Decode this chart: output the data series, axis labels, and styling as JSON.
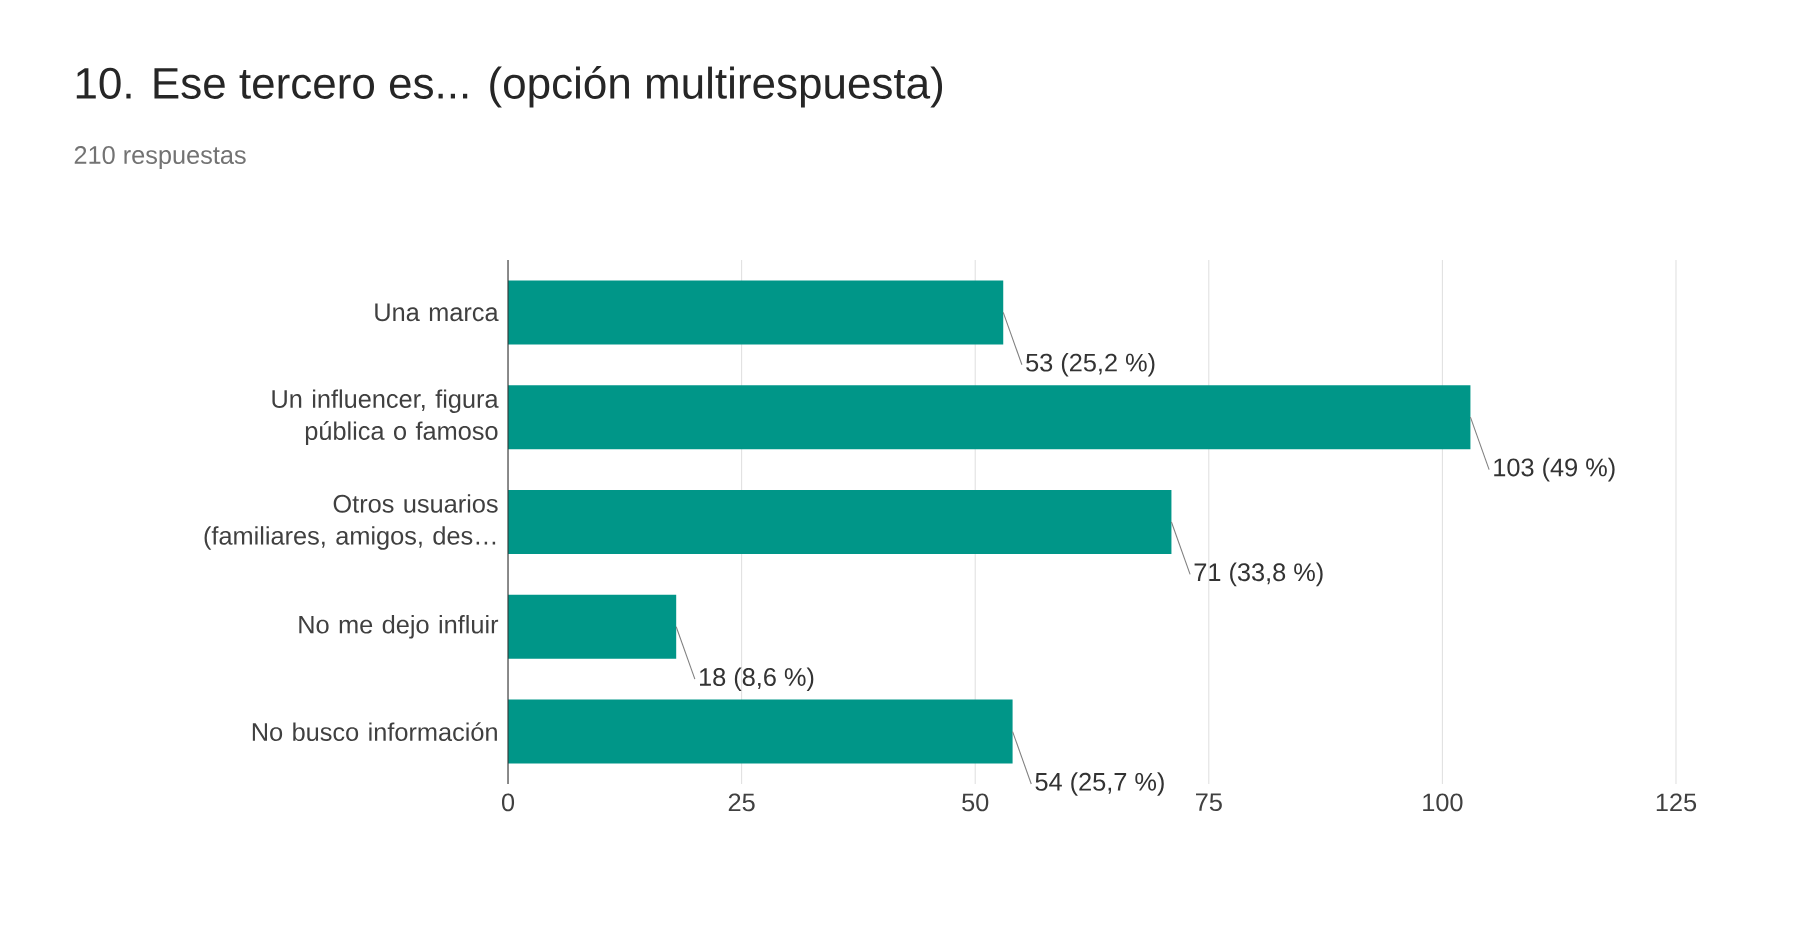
{
  "chart_data": {
    "type": "bar",
    "orientation": "horizontal",
    "title": "10. Ese tercero es... (opción multirespuesta)",
    "subtitle": "210 respuestas",
    "categories": [
      "Una marca",
      "Un influencer, figura pública o famoso",
      "Otros usuarios (familiares, amigos, des…",
      "No me dejo influir",
      "No busco información"
    ],
    "values": [
      53,
      103,
      71,
      18,
      54
    ],
    "value_labels": [
      "53 (25,2 %)",
      "103 (49 %)",
      "71 (33,8 %)",
      "18 (8,6 %)",
      "54 (25,7 %)"
    ],
    "color": "#009688",
    "xlim": [
      0,
      125
    ],
    "xticks": [
      0,
      25,
      50,
      75,
      100,
      125
    ],
    "grid": "x"
  }
}
